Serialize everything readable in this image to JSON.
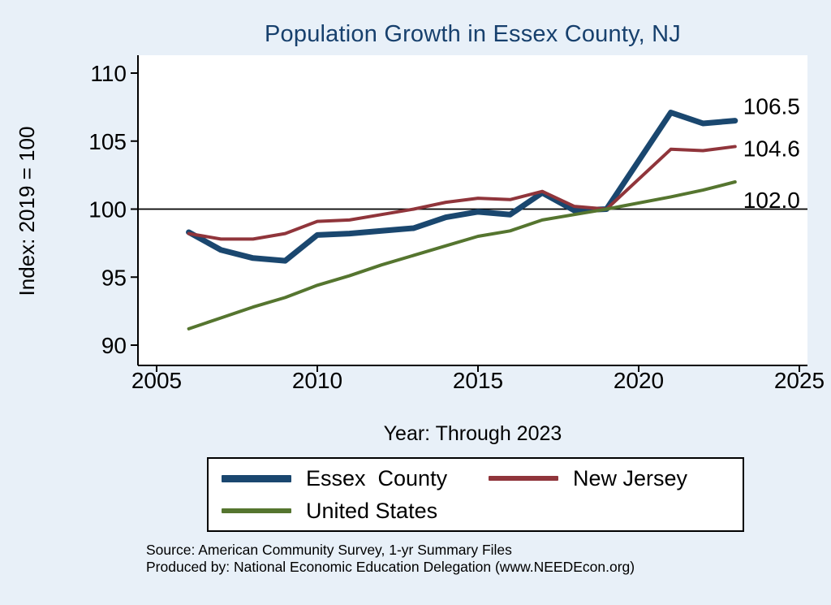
{
  "chart_data": {
    "type": "line",
    "title": "Population Growth in Essex County, NJ",
    "xlabel": "Year: Through 2023",
    "ylabel": "Index: 2019 = 100",
    "xlim": [
      2004,
      2025.3
    ],
    "ylim": [
      88.5,
      111.3
    ],
    "xticks": [
      2005,
      2010,
      2015,
      2020,
      2025
    ],
    "yticks": [
      90,
      95,
      100,
      105,
      110
    ],
    "reference_line_y": 100,
    "grid": false,
    "legend_position": "bottom",
    "x": [
      2006,
      2007,
      2008,
      2009,
      2010,
      2011,
      2012,
      2013,
      2014,
      2015,
      2016,
      2017,
      2018,
      2019,
      2021,
      2022,
      2023
    ],
    "series": [
      {
        "name": "Essex  County",
        "color": "#1a476f",
        "width": 7,
        "end_label": "106.5",
        "values": [
          98.3,
          97.0,
          96.4,
          96.2,
          98.1,
          98.2,
          98.4,
          98.6,
          99.4,
          99.8,
          99.6,
          101.2,
          99.9,
          100.0,
          107.1,
          106.3,
          106.5
        ]
      },
      {
        "name": "New Jersey",
        "color": "#90353b",
        "width": 4,
        "end_label": "104.6",
        "values": [
          98.2,
          97.8,
          97.8,
          98.2,
          99.1,
          99.2,
          99.6,
          100.0,
          100.5,
          100.8,
          100.7,
          101.3,
          100.2,
          100.0,
          104.4,
          104.3,
          104.6
        ]
      },
      {
        "name": "United States",
        "color": "#55752f",
        "width": 4,
        "end_label": "102.0",
        "values": [
          91.2,
          92.0,
          92.8,
          93.5,
          94.4,
          95.1,
          95.9,
          96.6,
          97.3,
          98.0,
          98.4,
          99.2,
          99.6,
          100.0,
          100.9,
          101.4,
          102.0
        ]
      }
    ]
  },
  "source_line1": "Source: American Community Survey, 1-yr Summary Files",
  "source_line2": "Produced by: National Economic Education Delegation (www.NEEDEcon.org)"
}
